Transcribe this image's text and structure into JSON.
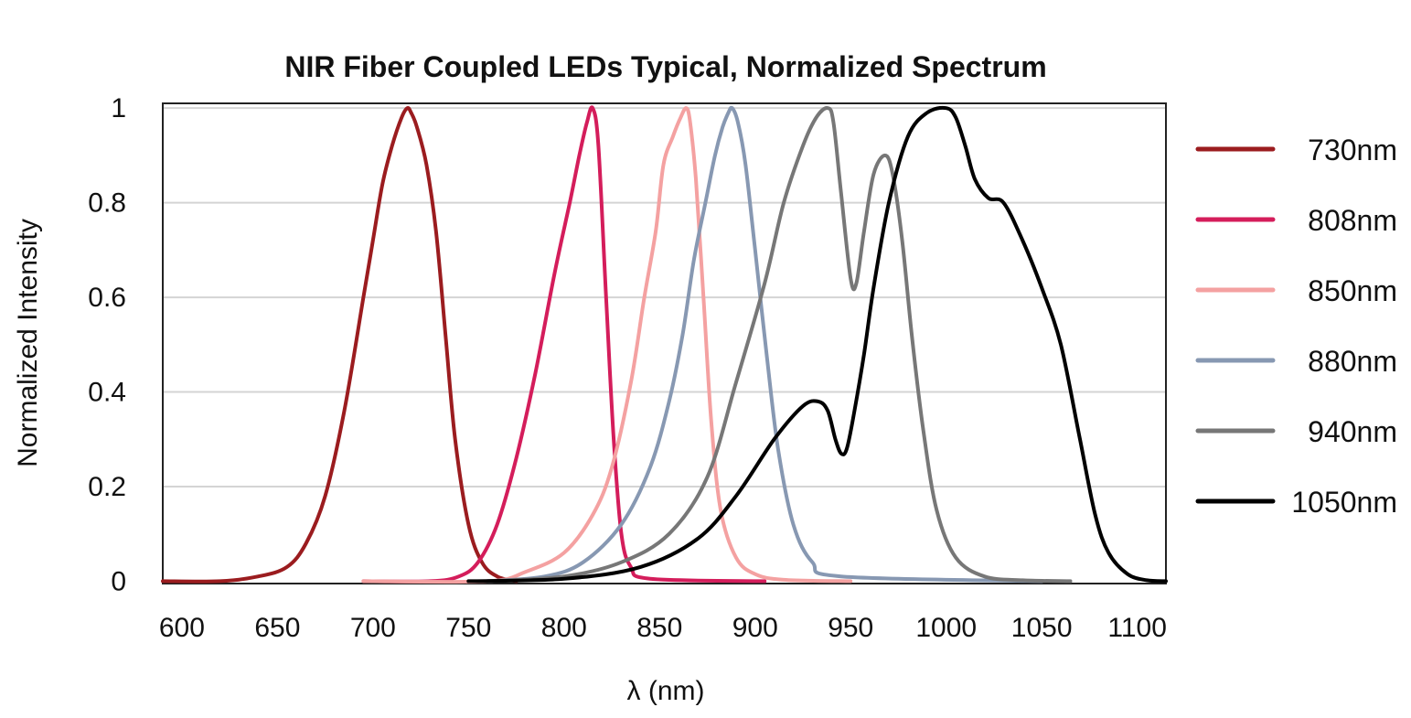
{
  "chart_data": {
    "type": "line",
    "title": "NIR Fiber Coupled LEDs Typical, Normalized Spectrum",
    "xlabel": "λ (nm)",
    "ylabel": "Normalized Intensity",
    "xlim": [
      590,
      1115
    ],
    "ylim": [
      -0.005,
      1.01
    ],
    "xticks": [
      600,
      650,
      700,
      750,
      800,
      850,
      900,
      950,
      1000,
      1050,
      1100
    ],
    "yticks": [
      0,
      0.2,
      0.4,
      0.6,
      0.8,
      1
    ],
    "ytick_labels": [
      "0",
      "0.2",
      "0.4",
      "0.6",
      "0.8",
      "1"
    ],
    "grid": "horizontal",
    "legend_position": "right",
    "series": [
      {
        "name": "730nm",
        "color": "#9b1c1f",
        "x": [
          590,
          620,
          640,
          655,
          665,
          675,
          685,
          695,
          700,
          705,
          710,
          715,
          718,
          720,
          723,
          728,
          733,
          738,
          743,
          750,
          757,
          765,
          775
        ],
        "y": [
          0,
          0,
          0.01,
          0.03,
          0.08,
          0.18,
          0.36,
          0.6,
          0.72,
          0.84,
          0.92,
          0.98,
          1.0,
          0.99,
          0.96,
          0.88,
          0.74,
          0.52,
          0.3,
          0.12,
          0.04,
          0.01,
          0
        ]
      },
      {
        "name": "808nm",
        "color": "#d41d5b",
        "x": [
          695,
          730,
          745,
          755,
          765,
          775,
          785,
          795,
          803,
          808,
          812,
          815,
          818,
          822,
          826,
          830,
          835,
          845,
          905
        ],
        "y": [
          0,
          0,
          0.01,
          0.04,
          0.12,
          0.26,
          0.44,
          0.65,
          0.8,
          0.9,
          0.97,
          1.0,
          0.92,
          0.6,
          0.3,
          0.1,
          0.03,
          0.005,
          0
        ]
      },
      {
        "name": "850nm",
        "color": "#f4a1a1",
        "x": [
          695,
          760,
          780,
          800,
          815,
          825,
          835,
          842,
          848,
          852,
          857,
          861,
          864,
          866,
          869,
          873,
          877,
          882,
          890,
          900,
          915,
          950
        ],
        "y": [
          0,
          0,
          0.02,
          0.06,
          0.14,
          0.24,
          0.42,
          0.6,
          0.74,
          0.88,
          0.94,
          0.98,
          1.0,
          0.97,
          0.85,
          0.6,
          0.34,
          0.15,
          0.05,
          0.015,
          0.003,
          0
        ]
      },
      {
        "name": "880nm",
        "color": "#8798b2",
        "x": [
          760,
          790,
          810,
          830,
          845,
          855,
          862,
          868,
          874,
          879,
          883,
          886,
          888,
          891,
          895,
          900,
          906,
          912,
          920,
          930,
          945,
          1050
        ],
        "y": [
          0,
          0.01,
          0.04,
          0.12,
          0.24,
          0.38,
          0.52,
          0.68,
          0.8,
          0.9,
          0.96,
          0.99,
          1.0,
          0.97,
          0.88,
          0.7,
          0.48,
          0.28,
          0.12,
          0.04,
          0.01,
          0
        ]
      },
      {
        "name": "940nm",
        "color": "#777777",
        "x": [
          760,
          800,
          830,
          855,
          875,
          890,
          905,
          915,
          925,
          932,
          938,
          941,
          945,
          950,
          953,
          957,
          962,
          968,
          972,
          977,
          982,
          988,
          995,
          1005,
          1020,
          1040,
          1065
        ],
        "y": [
          0,
          0.01,
          0.04,
          0.1,
          0.22,
          0.42,
          0.63,
          0.8,
          0.92,
          0.98,
          1.0,
          0.97,
          0.82,
          0.64,
          0.63,
          0.74,
          0.86,
          0.9,
          0.86,
          0.72,
          0.52,
          0.32,
          0.15,
          0.05,
          0.01,
          0.002,
          0
        ]
      },
      {
        "name": "1050nm",
        "color": "#000000",
        "x": [
          750,
          800,
          840,
          870,
          890,
          910,
          925,
          933,
          938,
          942,
          945,
          948,
          952,
          957,
          962,
          970,
          980,
          990,
          1000,
          1005,
          1010,
          1015,
          1022,
          1030,
          1040,
          1050,
          1060,
          1070,
          1078,
          1085,
          1095,
          1105,
          1115
        ],
        "y": [
          0,
          0.005,
          0.03,
          0.09,
          0.18,
          0.3,
          0.37,
          0.38,
          0.36,
          0.3,
          0.27,
          0.28,
          0.36,
          0.48,
          0.62,
          0.8,
          0.94,
          0.99,
          1.0,
          0.98,
          0.92,
          0.85,
          0.81,
          0.8,
          0.72,
          0.62,
          0.5,
          0.3,
          0.14,
          0.06,
          0.015,
          0.002,
          0
        ]
      }
    ]
  }
}
